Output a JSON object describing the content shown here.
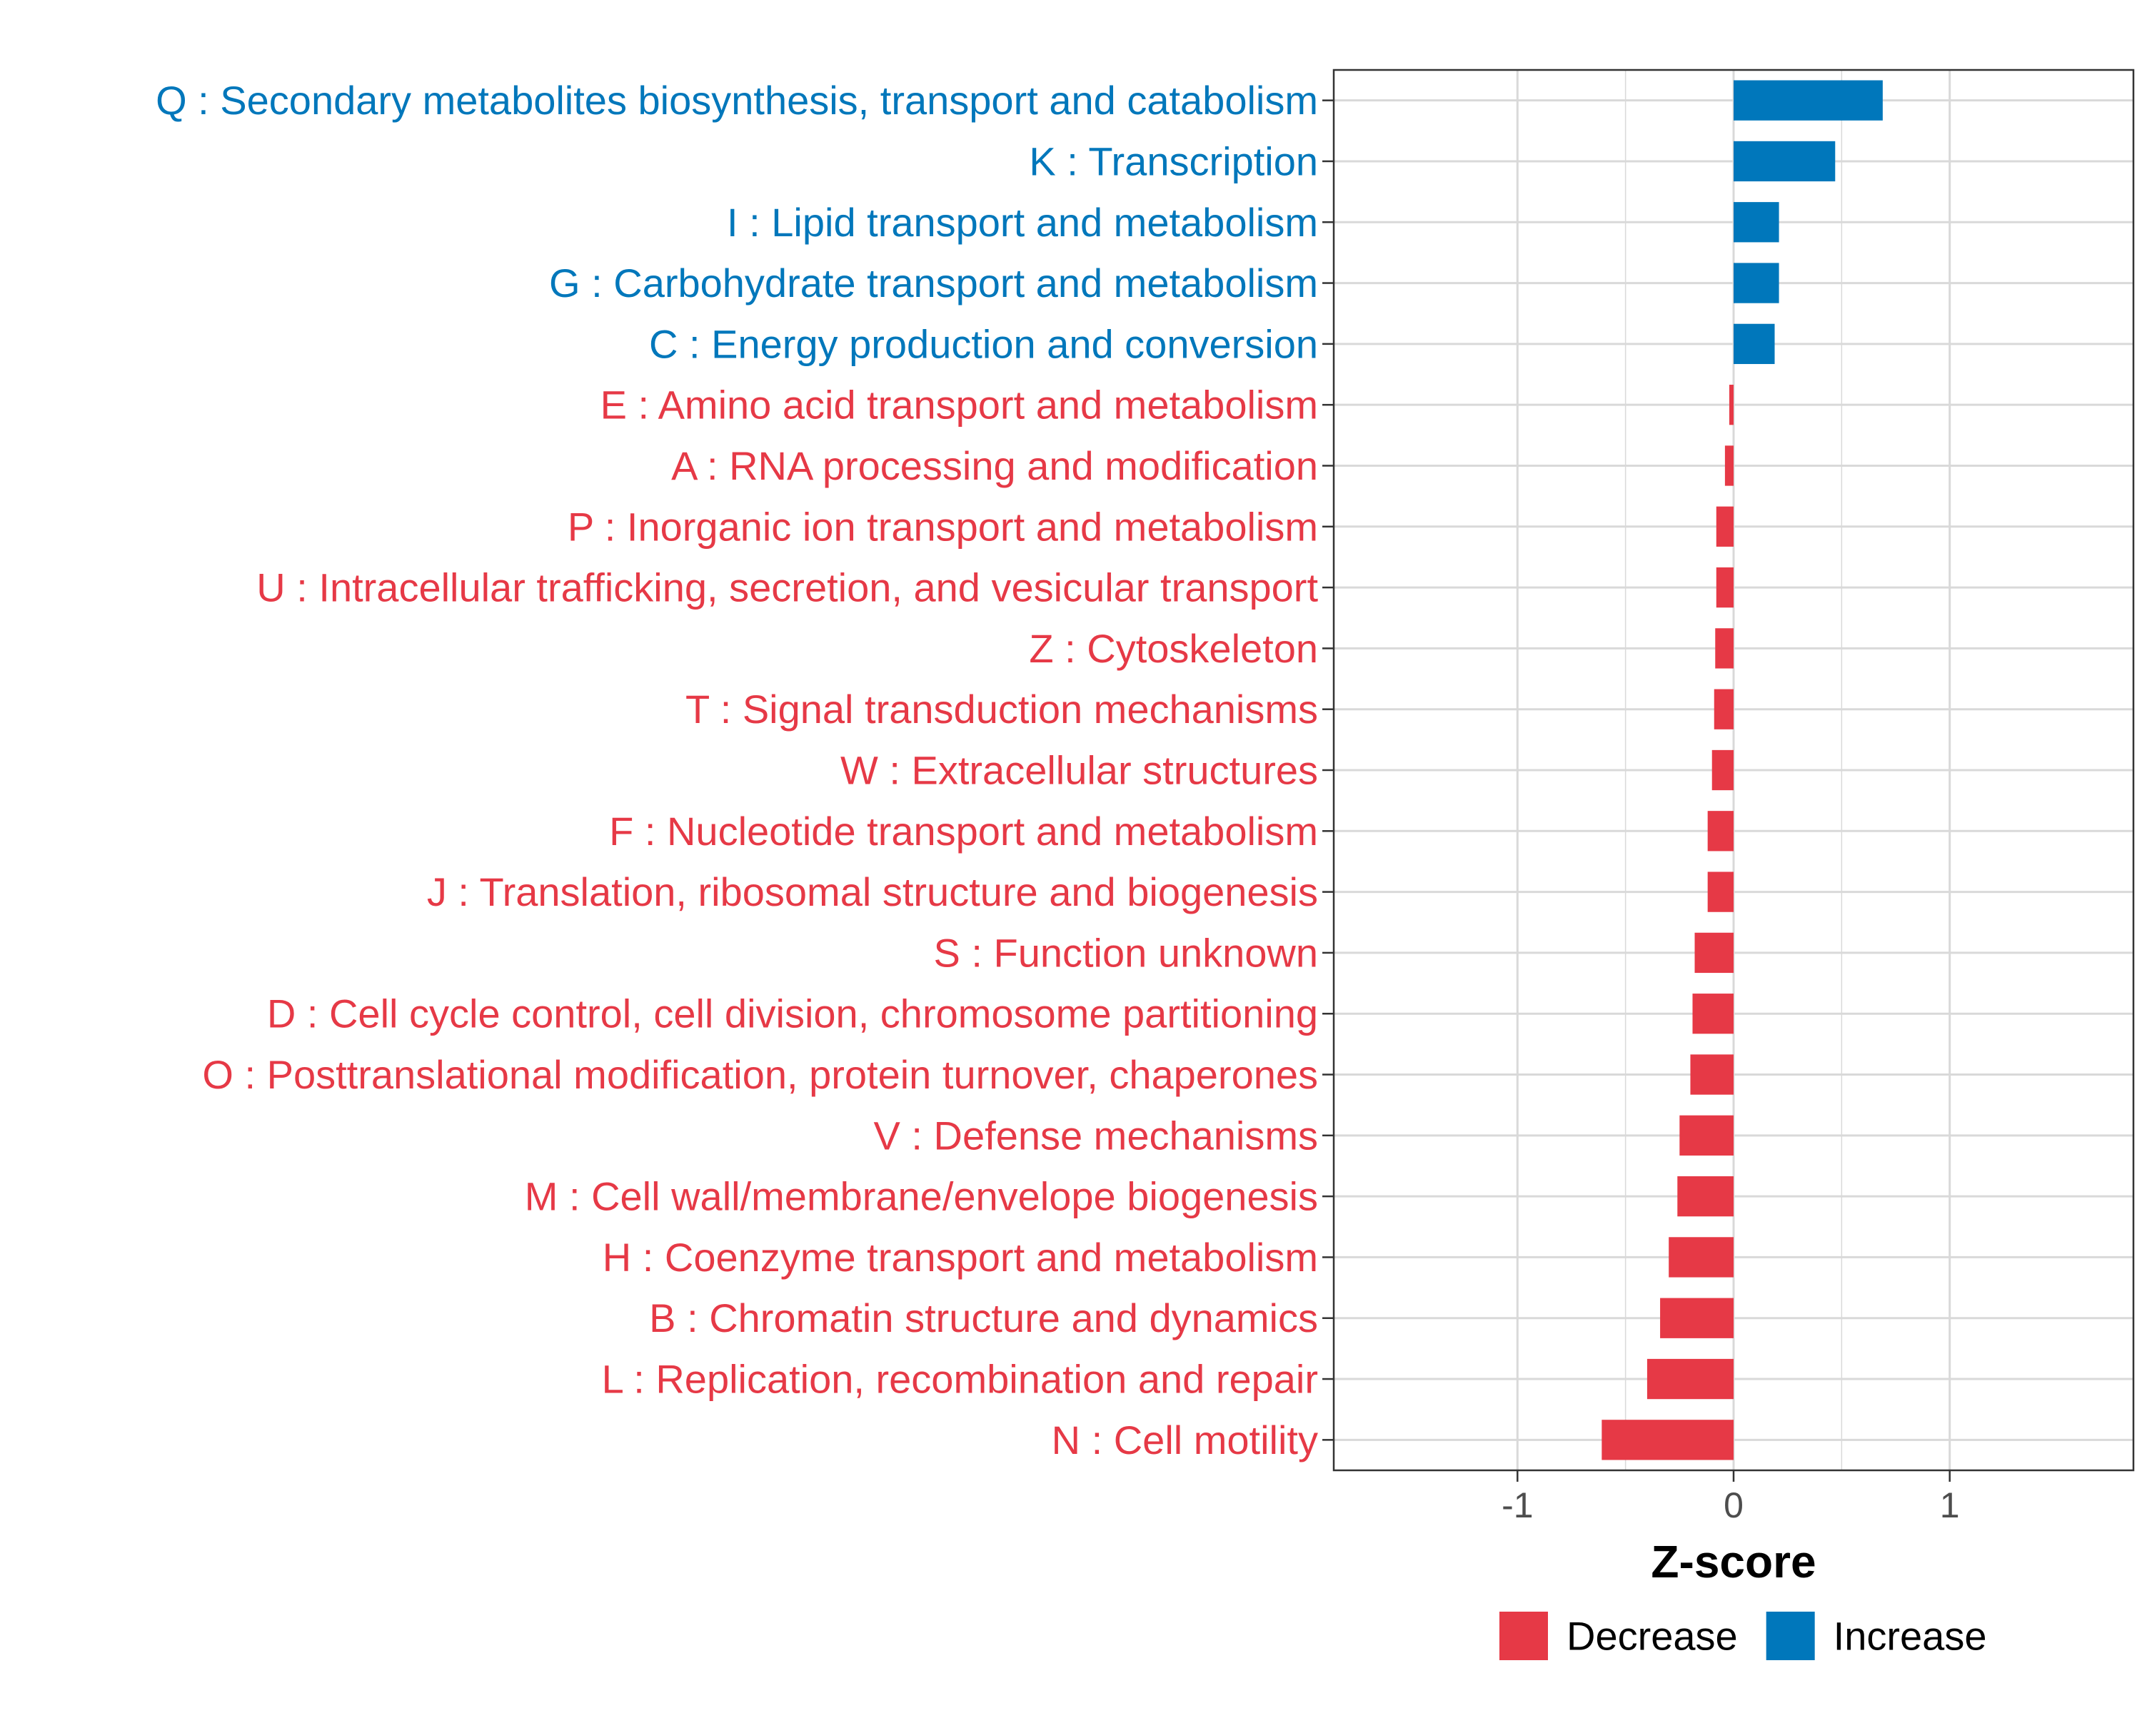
{
  "chart_data": {
    "type": "bar",
    "orientation": "horizontal",
    "title": "",
    "xlabel": "Z-score",
    "ylabel": "",
    "xlim": [
      -1.85,
      1.85
    ],
    "x_ticks": [
      -1,
      0,
      1
    ],
    "x_tick_labels": [
      "-1",
      "0",
      "1"
    ],
    "grid": true,
    "legend_position": "bottom",
    "colors": {
      "Decrease": "#e63946",
      "Increase": "#0077bb",
      "grid": "#d9d9d9"
    },
    "legend": [
      {
        "name": "Decrease",
        "color": "#e63946"
      },
      {
        "name": "Increase",
        "color": "#0077bb"
      }
    ],
    "bars": [
      {
        "label": "Q : Secondary metabolites biosynthesis, transport and catabolism",
        "value": 0.69,
        "group": "Increase"
      },
      {
        "label": "K : Transcription",
        "value": 0.47,
        "group": "Increase"
      },
      {
        "label": "I : Lipid transport and metabolism",
        "value": 0.21,
        "group": "Increase"
      },
      {
        "label": "G : Carbohydrate transport and metabolism",
        "value": 0.21,
        "group": "Increase"
      },
      {
        "label": "C : Energy production and conversion",
        "value": 0.19,
        "group": "Increase"
      },
      {
        "label": "E : Amino acid transport and metabolism",
        "value": -0.02,
        "group": "Decrease"
      },
      {
        "label": "A : RNA processing and modification",
        "value": -0.04,
        "group": "Decrease"
      },
      {
        "label": "P : Inorganic ion transport and metabolism",
        "value": -0.08,
        "group": "Decrease"
      },
      {
        "label": "U : Intracellular trafficking, secretion, and vesicular transport",
        "value": -0.08,
        "group": "Decrease"
      },
      {
        "label": "Z : Cytoskeleton",
        "value": -0.085,
        "group": "Decrease"
      },
      {
        "label": "T : Signal transduction mechanisms",
        "value": -0.09,
        "group": "Decrease"
      },
      {
        "label": "W : Extracellular structures",
        "value": -0.1,
        "group": "Decrease"
      },
      {
        "label": "F : Nucleotide transport and metabolism",
        "value": -0.12,
        "group": "Decrease"
      },
      {
        "label": "J : Translation, ribosomal structure and biogenesis",
        "value": -0.12,
        "group": "Decrease"
      },
      {
        "label": "S : Function unknown",
        "value": -0.18,
        "group": "Decrease"
      },
      {
        "label": "D : Cell cycle control, cell division, chromosome partitioning",
        "value": -0.19,
        "group": "Decrease"
      },
      {
        "label": "O : Posttranslational modification, protein turnover, chaperones",
        "value": -0.2,
        "group": "Decrease"
      },
      {
        "label": "V : Defense mechanisms",
        "value": -0.25,
        "group": "Decrease"
      },
      {
        "label": "M : Cell wall/membrane/envelope biogenesis",
        "value": -0.26,
        "group": "Decrease"
      },
      {
        "label": "H : Coenzyme transport and metabolism",
        "value": -0.3,
        "group": "Decrease"
      },
      {
        "label": "B : Chromatin structure and dynamics",
        "value": -0.34,
        "group": "Decrease"
      },
      {
        "label": "L : Replication, recombination and repair",
        "value": -0.4,
        "group": "Decrease"
      },
      {
        "label": "N : Cell motility",
        "value": -0.61,
        "group": "Decrease"
      }
    ]
  }
}
